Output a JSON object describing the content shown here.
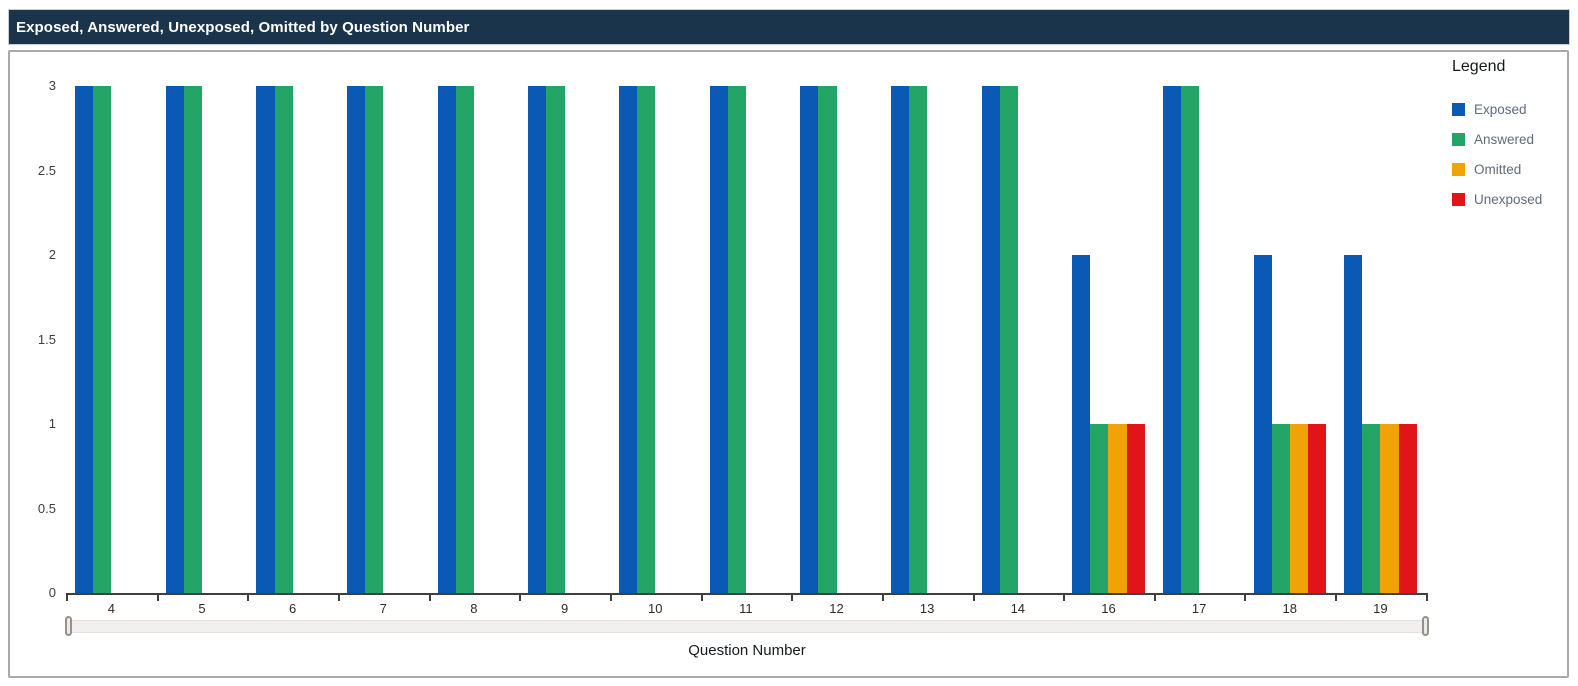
{
  "title_bar": {
    "title": "Exposed, Answered, Unexposed, Omitted by Question Number"
  },
  "legend": {
    "title": "Legend",
    "items": [
      {
        "label": "Exposed",
        "color": "#0a5ab5"
      },
      {
        "label": "Answered",
        "color": "#23a567"
      },
      {
        "label": "Omitted",
        "color": "#f0a305"
      },
      {
        "label": "Unexposed",
        "color": "#e11419"
      }
    ]
  },
  "chart_data": {
    "type": "bar",
    "title": "Exposed, Answered, Unexposed, Omitted by Question Number",
    "categories": [
      "4",
      "5",
      "6",
      "7",
      "8",
      "9",
      "10",
      "11",
      "12",
      "13",
      "14",
      "16",
      "17",
      "18",
      "19"
    ],
    "series": [
      {
        "name": "Exposed",
        "color": "#0a5ab5",
        "values": [
          3,
          3,
          3,
          3,
          3,
          3,
          3,
          3,
          3,
          3,
          3,
          2,
          3,
          2,
          2
        ]
      },
      {
        "name": "Answered",
        "color": "#23a567",
        "values": [
          3,
          3,
          3,
          3,
          3,
          3,
          3,
          3,
          3,
          3,
          3,
          1,
          3,
          1,
          1
        ]
      },
      {
        "name": "Omitted",
        "color": "#f0a305",
        "values": [
          0,
          0,
          0,
          0,
          0,
          0,
          0,
          0,
          0,
          0,
          0,
          1,
          0,
          1,
          1
        ]
      },
      {
        "name": "Unexposed",
        "color": "#e11419",
        "values": [
          0,
          0,
          0,
          0,
          0,
          0,
          0,
          0,
          0,
          0,
          0,
          1,
          0,
          1,
          1
        ]
      }
    ],
    "xlabel": "Question Number",
    "ylabel": "",
    "ylim": [
      0,
      3
    ],
    "yticks": [
      0,
      0.5,
      1,
      1.5,
      2,
      2.5,
      3
    ],
    "grid": false,
    "legend_position": "right"
  },
  "colors": {
    "title_bar_bg": "#1a344c",
    "title_bar_text": "#ffffff",
    "panel_border": "#a9a9a9",
    "axis": "#3f3f3f",
    "scrollbar_track": "#f1f0ef"
  }
}
